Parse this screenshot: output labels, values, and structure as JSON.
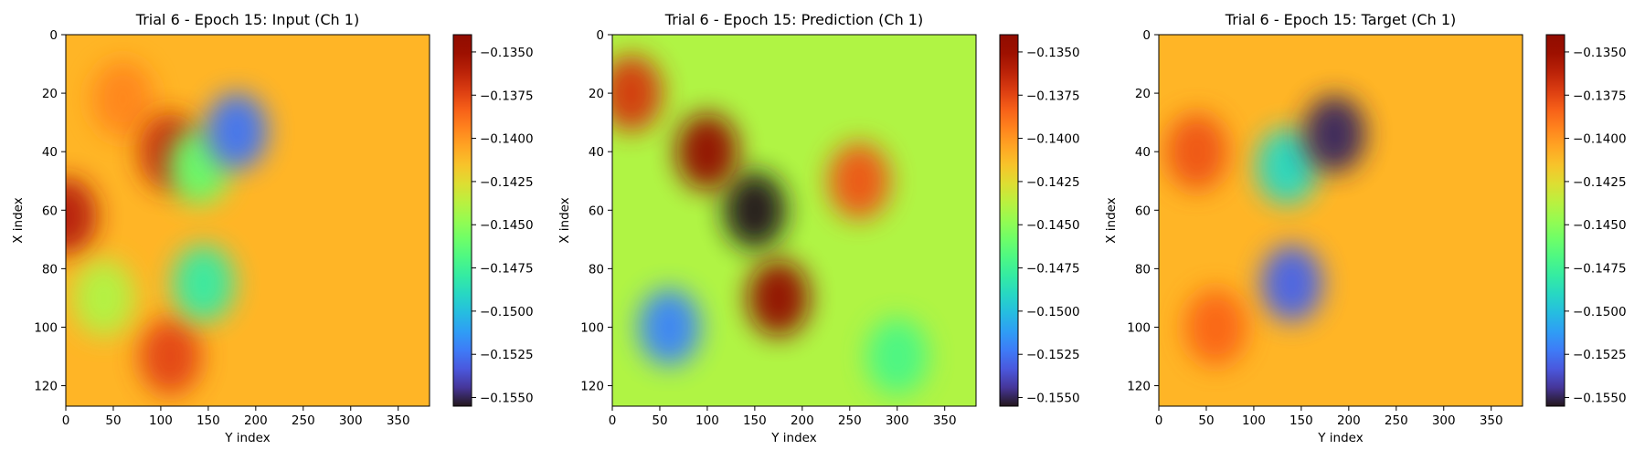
{
  "chart_data": [
    {
      "type": "heatmap",
      "title": "Trial 6 - Epoch 15: Input (Ch 1)",
      "xlabel": "Y index",
      "ylabel": "X index",
      "xlim": [
        0,
        383
      ],
      "ylim": [
        127,
        0
      ],
      "xticks": [
        "0",
        "50",
        "100",
        "150",
        "200",
        "250",
        "300",
        "350"
      ],
      "yticks": [
        "0",
        "20",
        "40",
        "60",
        "80",
        "100",
        "120"
      ],
      "colormap": "turbo",
      "colorbar": {
        "min": -0.1555,
        "max": -0.134,
        "ticks": [
          "−0.1350",
          "−0.1375",
          "−0.1400",
          "−0.1425",
          "−0.1450",
          "−0.1475",
          "−0.1500",
          "−0.1525",
          "−0.1550"
        ]
      },
      "features": [
        {
          "x": 0,
          "y": 62,
          "value": -0.136
        },
        {
          "x": 60,
          "y": 22,
          "value": -0.1395
        },
        {
          "x": 110,
          "y": 40,
          "value": -0.1365
        },
        {
          "x": 110,
          "y": 110,
          "value": -0.1375
        },
        {
          "x": 40,
          "y": 90,
          "value": -0.144
        },
        {
          "x": 140,
          "y": 45,
          "value": -0.146
        },
        {
          "x": 180,
          "y": 33,
          "value": -0.1525
        },
        {
          "x": 145,
          "y": 85,
          "value": -0.148
        },
        {
          "x": 290,
          "y": 64,
          "value": -0.141
        }
      ]
    },
    {
      "type": "heatmap",
      "title": "Trial 6 - Epoch 15: Prediction (Ch 1)",
      "xlabel": "Y index",
      "ylabel": "X index",
      "xlim": [
        0,
        383
      ],
      "ylim": [
        127,
        0
      ],
      "xticks": [
        "0",
        "50",
        "100",
        "150",
        "200",
        "250",
        "300",
        "350"
      ],
      "yticks": [
        "0",
        "20",
        "40",
        "60",
        "80",
        "100",
        "120"
      ],
      "colormap": "turbo",
      "colorbar": {
        "min": -0.1555,
        "max": -0.134,
        "ticks": [
          "−0.1350",
          "−0.1375",
          "−0.1400",
          "−0.1425",
          "−0.1450",
          "−0.1475",
          "−0.1500",
          "−0.1525",
          "−0.1550"
        ]
      },
      "features": [
        {
          "x": 150,
          "y": 60,
          "value": -0.1555
        },
        {
          "x": 100,
          "y": 40,
          "value": -0.1345
        },
        {
          "x": 175,
          "y": 90,
          "value": -0.1345
        },
        {
          "x": 60,
          "y": 100,
          "value": -0.152
        },
        {
          "x": 20,
          "y": 20,
          "value": -0.137
        },
        {
          "x": 260,
          "y": 50,
          "value": -0.138
        },
        {
          "x": 300,
          "y": 110,
          "value": -0.147
        },
        {
          "x": 220,
          "y": 30,
          "value": -0.144
        }
      ]
    },
    {
      "type": "heatmap",
      "title": "Trial 6 - Epoch 15: Target (Ch 1)",
      "xlabel": "Y index",
      "ylabel": "X index",
      "xlim": [
        0,
        383
      ],
      "ylim": [
        127,
        0
      ],
      "xticks": [
        "0",
        "50",
        "100",
        "150",
        "200",
        "250",
        "300",
        "350"
      ],
      "yticks": [
        "0",
        "20",
        "40",
        "60",
        "80",
        "100",
        "120"
      ],
      "colormap": "turbo",
      "colorbar": {
        "min": -0.1555,
        "max": -0.134,
        "ticks": [
          "−0.1350",
          "−0.1375",
          "−0.1400",
          "−0.1425",
          "−0.1450",
          "−0.1475",
          "−0.1500",
          "−0.1525",
          "−0.1550"
        ]
      },
      "features": [
        {
          "x": 135,
          "y": 45,
          "value": -0.149
        },
        {
          "x": 185,
          "y": 34,
          "value": -0.155
        },
        {
          "x": 140,
          "y": 85,
          "value": -0.153
        },
        {
          "x": 40,
          "y": 40,
          "value": -0.138
        },
        {
          "x": 60,
          "y": 100,
          "value": -0.1385
        },
        {
          "x": 290,
          "y": 64,
          "value": -0.141
        }
      ]
    }
  ]
}
